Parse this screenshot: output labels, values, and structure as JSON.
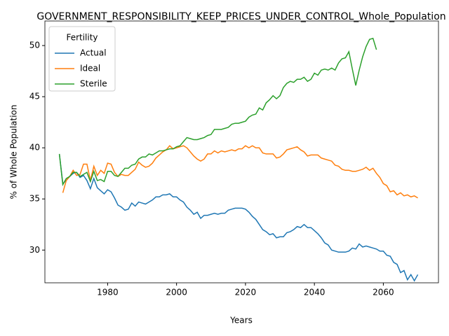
{
  "chart_data": {
    "type": "line",
    "title": "GOVERNMENT_RESPONSIBILITY_KEEP_PRICES_UNDER_CONTROL_Whole_Population",
    "xlabel": "Years",
    "ylabel": "% of Whole Population",
    "legend_title": "Fertility",
    "legend": "upper left",
    "grid": false,
    "x": [
      1966,
      1967,
      1968,
      1969,
      1970,
      1971,
      1972,
      1973,
      1974,
      1975,
      1976,
      1977,
      1978,
      1979,
      1980,
      1981,
      1982,
      1983,
      1984,
      1985,
      1986,
      1987,
      1988,
      1989,
      1990,
      1991,
      1992,
      1993,
      1994,
      1995,
      1996,
      1997,
      1998,
      1999,
      2000,
      2001,
      2002,
      2003,
      2004,
      2005,
      2006,
      2007,
      2008,
      2009,
      2010,
      2011,
      2012,
      2013,
      2014,
      2015,
      2016,
      2017,
      2018,
      2019,
      2020,
      2021,
      2022,
      2023,
      2024,
      2025,
      2026,
      2027,
      2028,
      2029,
      2030,
      2031,
      2032,
      2033,
      2034,
      2035,
      2036,
      2037,
      2038,
      2039,
      2040,
      2041,
      2042,
      2043,
      2044,
      2045,
      2046,
      2047,
      2048,
      2049,
      2050,
      2051,
      2052,
      2053,
      2054,
      2055,
      2056,
      2057,
      2058,
      2059,
      2060,
      2061,
      2062,
      2063,
      2064,
      2065,
      2066,
      2067,
      2068,
      2069,
      2070
    ],
    "series": [
      {
        "name": "Actual",
        "color": "#1f77b4",
        "values": [
          39.4,
          36.5,
          36.8,
          37.2,
          37.5,
          37.6,
          37.1,
          37.3,
          36.8,
          36.0,
          37.0,
          36.1,
          35.8,
          35.5,
          35.9,
          35.7,
          35.1,
          34.4,
          34.2,
          33.9,
          34.0,
          34.6,
          34.3,
          34.7,
          34.6,
          34.5,
          34.7,
          34.9,
          35.2,
          35.2,
          35.4,
          35.4,
          35.5,
          35.2,
          35.2,
          34.9,
          34.7,
          34.2,
          33.9,
          33.5,
          33.7,
          33.1,
          33.4,
          33.4,
          33.5,
          33.6,
          33.5,
          33.6,
          33.6,
          33.9,
          34.0,
          34.1,
          34.1,
          34.1,
          34.0,
          33.7,
          33.3,
          33.0,
          32.5,
          32.0,
          31.8,
          31.5,
          31.6,
          31.2,
          31.3,
          31.3,
          31.7,
          31.8,
          32.0,
          32.3,
          32.2,
          32.5,
          32.2,
          32.2,
          31.9,
          31.6,
          31.2,
          30.7,
          30.5,
          30.0,
          29.9,
          29.8,
          29.8,
          29.8,
          29.9,
          30.2,
          30.1,
          30.6,
          30.3,
          30.4,
          30.3,
          30.2,
          30.1,
          29.9,
          29.9,
          29.5,
          29.4,
          28.8,
          28.6,
          27.8,
          28.0,
          27.1,
          27.6,
          27.0,
          27.6
        ]
      },
      {
        "name": "Ideal",
        "color": "#ff7f0e",
        "values": [
          null,
          35.6,
          36.8,
          37.2,
          37.8,
          37.3,
          37.4,
          38.4,
          38.4,
          36.8,
          38.2,
          37.3,
          37.8,
          37.5,
          38.5,
          38.4,
          37.6,
          37.2,
          37.4,
          37.3,
          37.3,
          37.6,
          37.9,
          38.6,
          38.3,
          38.1,
          38.2,
          38.5,
          39.0,
          39.3,
          39.6,
          39.8,
          40.2,
          39.9,
          40.0,
          40.1,
          40.2,
          40.0,
          39.6,
          39.2,
          38.9,
          38.7,
          38.9,
          39.4,
          39.4,
          39.7,
          39.5,
          39.7,
          39.6,
          39.7,
          39.8,
          39.7,
          39.9,
          39.9,
          40.2,
          40.0,
          40.2,
          40.0,
          40.0,
          39.5,
          39.4,
          39.4,
          39.4,
          39.0,
          39.1,
          39.4,
          39.8,
          39.9,
          40.0,
          40.1,
          39.8,
          39.6,
          39.2,
          39.3,
          39.3,
          39.3,
          39.0,
          38.9,
          38.8,
          38.7,
          38.3,
          38.2,
          37.9,
          37.8,
          37.8,
          37.7,
          37.7,
          37.8,
          37.9,
          38.1,
          37.8,
          38.0,
          37.5,
          37.1,
          36.5,
          36.3,
          35.7,
          35.8,
          35.4,
          35.6,
          35.3,
          35.4,
          35.2,
          35.3,
          35.1
        ]
      },
      {
        "name": "Sterile",
        "color": "#2ca02c",
        "values": [
          39.4,
          36.4,
          37.0,
          37.2,
          37.6,
          37.6,
          37.2,
          37.4,
          37.6,
          36.7,
          37.7,
          36.8,
          36.9,
          36.7,
          37.7,
          37.7,
          37.3,
          37.2,
          37.6,
          38.0,
          38.0,
          38.3,
          38.4,
          38.9,
          39.1,
          39.1,
          39.4,
          39.3,
          39.5,
          39.7,
          39.7,
          39.8,
          39.9,
          39.9,
          40.1,
          40.2,
          40.6,
          41.0,
          40.9,
          40.8,
          40.8,
          40.9,
          41.0,
          41.2,
          41.3,
          41.8,
          41.8,
          41.8,
          41.9,
          42.0,
          42.3,
          42.4,
          42.4,
          42.5,
          42.6,
          43.0,
          43.2,
          43.3,
          43.9,
          43.7,
          44.4,
          44.7,
          45.1,
          44.8,
          45.1,
          45.9,
          46.3,
          46.5,
          46.4,
          46.7,
          46.7,
          46.9,
          46.5,
          46.7,
          47.3,
          47.1,
          47.6,
          47.7,
          47.6,
          47.8,
          47.6,
          48.3,
          48.7,
          48.8,
          49.4,
          47.7,
          46.1,
          47.6,
          48.9,
          49.9,
          50.6,
          50.7,
          49.6,
          null,
          null,
          null,
          null,
          null,
          null,
          null,
          null,
          null,
          null,
          null,
          null
        ]
      }
    ],
    "xlim": [
      1961.8,
      2076
    ],
    "xticks": [
      1980,
      2000,
      2020,
      2040,
      2060
    ],
    "ylim": [
      26.8,
      52.4
    ],
    "yticks": [
      30,
      35,
      40,
      45,
      50
    ]
  }
}
